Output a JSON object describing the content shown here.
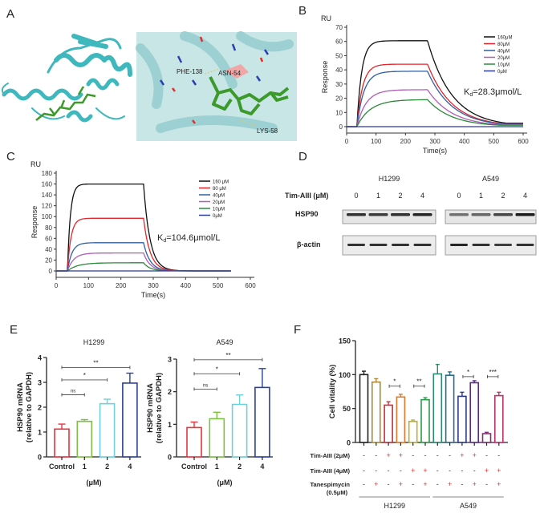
{
  "panel_labels": {
    "a": "A",
    "b": "B",
    "c": "C",
    "d": "D",
    "e": "E",
    "f": "F"
  },
  "panel_a": {
    "residue_labels": [
      "PHE-138",
      "ASN-54",
      "LYS-58"
    ],
    "colors": {
      "protein": "#3fb8bd",
      "ligand": "#3c9a2a",
      "background": "#c9e6e6"
    }
  },
  "chart_data": [
    {
      "id": "B",
      "type": "line",
      "title": "",
      "unit_label": "RU",
      "xlabel": "Time(s)",
      "ylabel": "Response",
      "xlim": [
        0,
        600
      ],
      "ylim": [
        0,
        70
      ],
      "xticks": [
        0,
        100,
        200,
        300,
        400,
        500,
        600
      ],
      "yticks": [
        0,
        10,
        20,
        30,
        40,
        50,
        60,
        70
      ],
      "injection_start_s": 35,
      "injection_end_s": 275,
      "run_end_s": 600,
      "annotation": "Kd=28.3μmol/L",
      "annotation_main": "K",
      "annotation_sub": "d",
      "annotation_rest": "=28.3μmol/L",
      "legend_position": "top-right",
      "series": [
        {
          "name": "160μM",
          "color": "#111111",
          "response_at_injection_end": 60.5,
          "response_at_run_end": 2.5
        },
        {
          "name": "80μM",
          "color": "#e0262b",
          "response_at_injection_end": 44,
          "response_at_run_end": 2
        },
        {
          "name": "40μM",
          "color": "#2d5fa8",
          "response_at_injection_end": 39,
          "response_at_run_end": 1.8
        },
        {
          "name": "20μM",
          "color": "#b05cb8",
          "response_at_injection_end": 26,
          "response_at_run_end": 1.5
        },
        {
          "name": "10μM",
          "color": "#2b8a3a",
          "response_at_injection_end": 19,
          "response_at_run_end": 1
        },
        {
          "name": "0μM",
          "color": "#2a3b9a",
          "response_at_injection_end": 0,
          "response_at_run_end": 0
        }
      ]
    },
    {
      "id": "C",
      "type": "line",
      "title": "",
      "unit_label": "RU",
      "xlabel": "Time(s)",
      "ylabel": "Response",
      "xlim": [
        0,
        600
      ],
      "ylim": [
        0,
        180
      ],
      "xticks": [
        0,
        100,
        200,
        300,
        400,
        500,
        600
      ],
      "yticks": [
        0,
        20,
        40,
        60,
        80,
        100,
        120,
        140,
        160,
        180
      ],
      "injection_start_s": 35,
      "injection_end_s": 270,
      "run_end_s": 540,
      "annotation": "Kd=104.6μmol/L",
      "annotation_main": "K",
      "annotation_sub": "d",
      "annotation_rest": "=104.6μmol/L",
      "legend_position": "top-right",
      "series": [
        {
          "name": "160 μM",
          "color": "#111111",
          "response_at_injection_end": 160,
          "response_at_run_end": 0
        },
        {
          "name": "80 μM",
          "color": "#e0262b",
          "response_at_injection_end": 97,
          "response_at_run_end": 0
        },
        {
          "name": "40μM",
          "color": "#2d5fa8",
          "response_at_injection_end": 52,
          "response_at_run_end": 0
        },
        {
          "name": "20μM",
          "color": "#b05cb8",
          "response_at_injection_end": 33,
          "response_at_run_end": 0
        },
        {
          "name": "10μM",
          "color": "#2b8a3a",
          "response_at_injection_end": 15,
          "response_at_run_end": 0
        },
        {
          "name": "0μM",
          "color": "#2a3b9a",
          "response_at_injection_end": 0,
          "response_at_run_end": 0
        }
      ]
    },
    {
      "id": "E-H1299",
      "type": "bar",
      "title": "H1299",
      "xlabel": "(μM)",
      "ylabel": "HSP90 mRNA",
      "ylabel2": "(relative to GAPDH)",
      "ylim": [
        0,
        4
      ],
      "yticks": [
        0,
        1,
        2,
        3,
        4
      ],
      "categories": [
        "Control",
        "1",
        "2",
        "4"
      ],
      "values": [
        1.12,
        1.43,
        2.14,
        2.97
      ],
      "errors": [
        0.2,
        0.07,
        0.18,
        0.4
      ],
      "colors": [
        "#e8343c",
        "#7cc142",
        "#6fd0dc",
        "#2a3f9e"
      ],
      "significance": [
        {
          "from": 0,
          "to": 1,
          "y": 2.5,
          "label": "ns"
        },
        {
          "from": 0,
          "to": 2,
          "y": 3.1,
          "label": "*"
        },
        {
          "from": 0,
          "to": 3,
          "y": 3.6,
          "label": "**"
        }
      ]
    },
    {
      "id": "E-A549",
      "type": "bar",
      "title": "A549",
      "xlabel": "(μM)",
      "ylabel": "HSP90 mRNA",
      "ylabel2": "(relative to GAPDH)",
      "ylim": [
        0,
        3
      ],
      "yticks": [
        0,
        1,
        2,
        3
      ],
      "categories": [
        "Control",
        "1",
        "2",
        "4"
      ],
      "values": [
        0.9,
        1.17,
        1.61,
        2.13
      ],
      "errors": [
        0.17,
        0.2,
        0.29,
        0.58
      ],
      "colors": [
        "#e8343c",
        "#7cc142",
        "#6fd0dc",
        "#2a3f9e"
      ],
      "significance": [
        {
          "from": 0,
          "to": 1,
          "y": 2.08,
          "label": "ns"
        },
        {
          "from": 0,
          "to": 2,
          "y": 2.55,
          "label": "*"
        },
        {
          "from": 0,
          "to": 3,
          "y": 2.98,
          "label": "**"
        }
      ]
    },
    {
      "id": "F",
      "type": "bar",
      "title": "",
      "ylabel": "Cell vitality (%)",
      "ylim": [
        0,
        150
      ],
      "yticks": [
        0,
        50,
        100,
        150
      ],
      "values": [
        100,
        89,
        55,
        67,
        31,
        63,
        101,
        99,
        68,
        88,
        13,
        69
      ],
      "errors": [
        5,
        5,
        5,
        4,
        2,
        3,
        14,
        5,
        6,
        3,
        2,
        5
      ],
      "colors": [
        "#222222",
        "#b08a3a",
        "#c9303a",
        "#e07a2a",
        "#b8b03a",
        "#2f9a4a",
        "#2a8a70",
        "#2a6a8a",
        "#2a3a8a",
        "#5a2a8a",
        "#8a2a7a",
        "#c0306a"
      ],
      "treatment_rows": [
        {
          "label": "Tim-AIII (2μM)",
          "marks": [
            "-",
            "-",
            "+",
            "+",
            "-",
            "-",
            "-",
            "-",
            "+",
            "+",
            "-",
            "-"
          ]
        },
        {
          "label": "Tim-AIII (4μM)",
          "marks": [
            "-",
            "-",
            "-",
            "-",
            "+",
            "+",
            "-",
            "-",
            "-",
            "-",
            "+",
            "+"
          ]
        },
        {
          "label": "Tanespimycin",
          "label2": "(0.5μM)",
          "marks": [
            "-",
            "+",
            "-",
            "+",
            "-",
            "+",
            "-",
            "+",
            "-",
            "+",
            "-",
            "+"
          ]
        }
      ],
      "groups": [
        {
          "label": "H1299",
          "from": 0,
          "to": 5
        },
        {
          "label": "A549",
          "from": 6,
          "to": 11
        }
      ],
      "significance": [
        {
          "from": 2,
          "to": 3,
          "y": 83,
          "label": "*"
        },
        {
          "from": 4,
          "to": 5,
          "y": 83,
          "label": "**"
        },
        {
          "from": 8,
          "to": 9,
          "y": 97,
          "label": "*"
        },
        {
          "from": 10,
          "to": 11,
          "y": 97,
          "label": "***"
        }
      ]
    }
  ],
  "western_blot": {
    "treatment_label": "Tim-AIII (μM)",
    "cell_lines": [
      {
        "name": "H1299",
        "doses": [
          "0",
          "1",
          "2",
          "4"
        ],
        "hsp90_intensity": [
          0.85,
          0.8,
          0.85,
          0.9
        ],
        "actin_intensity": [
          0.85,
          0.85,
          0.85,
          0.85
        ]
      },
      {
        "name": "A549",
        "doses": [
          "0",
          "1",
          "2",
          "4"
        ],
        "hsp90_intensity": [
          0.55,
          0.6,
          0.75,
          0.95
        ],
        "actin_intensity": [
          0.9,
          0.85,
          0.8,
          0.85
        ]
      }
    ],
    "rows": [
      "HSP90",
      "β-actin"
    ]
  }
}
